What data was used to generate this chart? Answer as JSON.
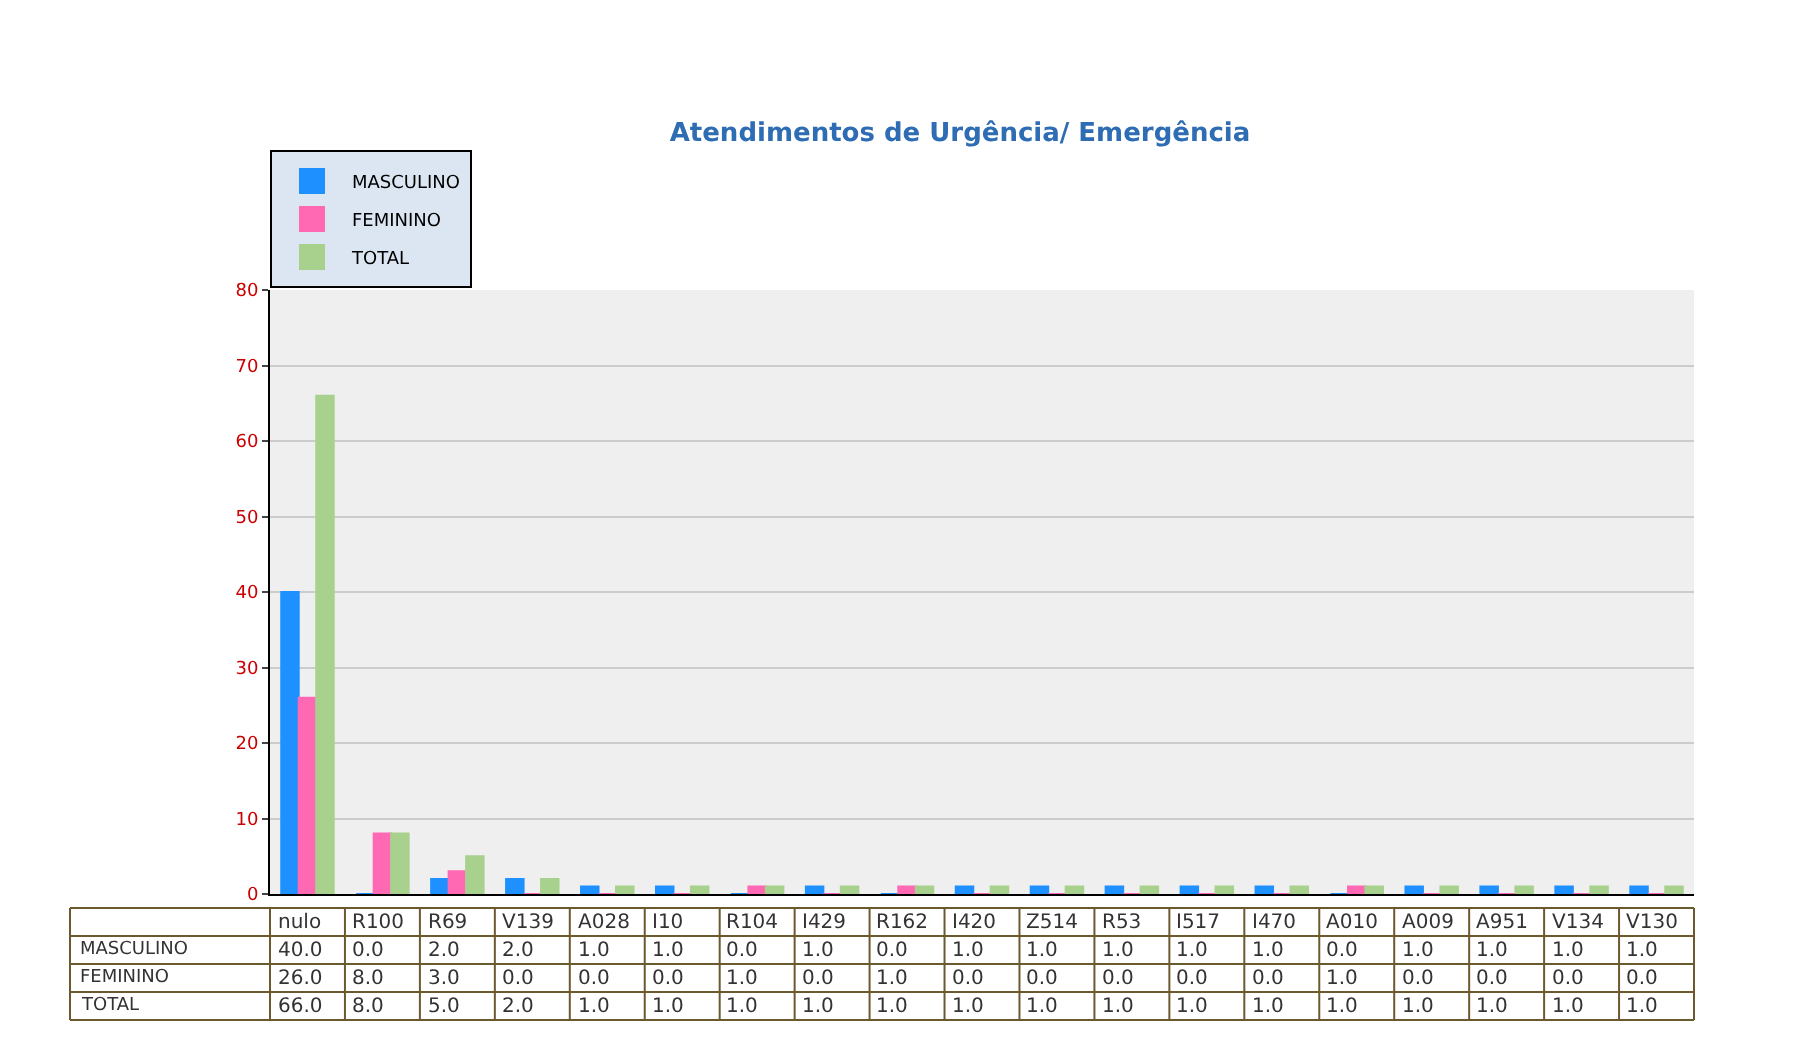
{
  "chart_data": {
    "type": "bar",
    "title": "Atendimentos de Urgência/ Emergência",
    "categories": [
      "nulo",
      "R100",
      "R69",
      "V139",
      "A028",
      "I10",
      "R104",
      "I429",
      "R162",
      "I420",
      "Z514",
      "R53",
      "I517",
      "I470",
      "A010",
      "A009",
      "A951",
      "V134",
      "V130"
    ],
    "series": [
      {
        "name": "MASCULINO",
        "color": "#1e90ff",
        "values": [
          40,
          0,
          2,
          2,
          1,
          1,
          0,
          1,
          0,
          1,
          1,
          1,
          1,
          1,
          0,
          1,
          1,
          1,
          1
        ],
        "value_labels": [
          "40.0",
          "0.0",
          "2.0",
          "2.0",
          "1.0",
          "1.0",
          "0.0",
          "1.0",
          "0.0",
          "1.0",
          "1.0",
          "1.0",
          "1.0",
          "1.0",
          "0.0",
          "1.0",
          "1.0",
          "1.0",
          "1.0"
        ]
      },
      {
        "name": "FEMININO",
        "color": "#ff69b4",
        "values": [
          26,
          8,
          3,
          0,
          0,
          0,
          1,
          0,
          1,
          0,
          0,
          0,
          0,
          0,
          1,
          0,
          0,
          0,
          0
        ],
        "value_labels": [
          "26.0",
          "8.0",
          "3.0",
          "0.0",
          "0.0",
          "0.0",
          "1.0",
          "0.0",
          "1.0",
          "0.0",
          "0.0",
          "0.0",
          "0.0",
          "0.0",
          "1.0",
          "0.0",
          "0.0",
          "0.0",
          "0.0"
        ]
      },
      {
        "name": "TOTAL",
        "color": "#a9d18e",
        "values": [
          66,
          8,
          5,
          2,
          1,
          1,
          1,
          1,
          1,
          1,
          1,
          1,
          1,
          1,
          1,
          1,
          1,
          1,
          1
        ],
        "value_labels": [
          "66.0",
          "8.0",
          "5.0",
          "2.0",
          "1.0",
          "1.0",
          "1.0",
          "1.0",
          "1.0",
          "1.0",
          "1.0",
          "1.0",
          "1.0",
          "1.0",
          "1.0",
          "1.0",
          "1.0",
          "1.0",
          "1.0"
        ]
      }
    ],
    "ylim": [
      0,
      80
    ],
    "yticks": [
      0,
      10,
      20,
      30,
      40,
      50,
      60,
      70,
      80
    ],
    "grid": "y",
    "legend": "top left"
  }
}
